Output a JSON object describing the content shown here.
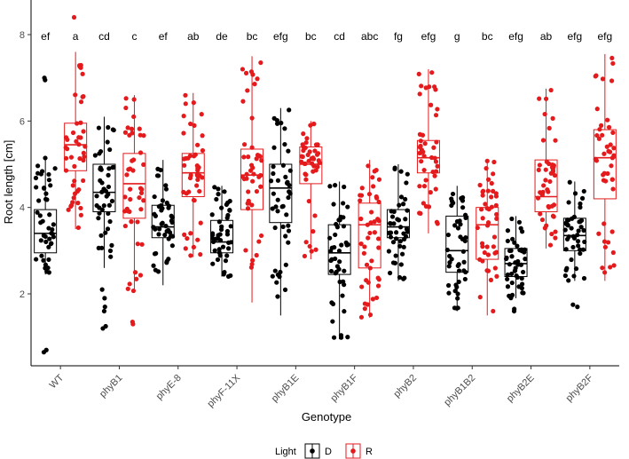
{
  "chart_data": {
    "type": "boxplot",
    "xlabel": "Genotype",
    "ylabel": "Root length [cm]",
    "ylim": [
      0.4,
      8.6
    ],
    "yticks": [
      2,
      4,
      6,
      8
    ],
    "categories": [
      "WT",
      "phyB1",
      "phyE-8",
      "phyF-11X",
      "phyB1E",
      "phyB1F",
      "phyB2",
      "phyB1B2",
      "phyB2E",
      "phyB2F"
    ],
    "legend": {
      "title": "Light",
      "position": "bottom",
      "entries": [
        "D",
        "R"
      ]
    },
    "series": [
      {
        "name": "D",
        "color": "#000000",
        "boxes": [
          {
            "min": 2.45,
            "q1": 2.95,
            "median": 3.4,
            "q3": 3.95,
            "max": 5.15,
            "outliers": [
              0.65,
              0.7,
              6.95,
              7.0
            ]
          },
          {
            "min": 2.6,
            "q1": 3.9,
            "median": 4.35,
            "q3": 5.0,
            "max": 6.1,
            "outliers": [
              1.2,
              1.25,
              1.6,
              1.7,
              1.9,
              2.1
            ]
          },
          {
            "min": 2.2,
            "q1": 3.3,
            "median": 3.55,
            "q3": 4.05,
            "max": 5.1,
            "outliers": []
          },
          {
            "min": 2.4,
            "q1": 2.95,
            "median": 3.2,
            "q3": 3.7,
            "max": 4.5,
            "outliers": []
          },
          {
            "min": 1.5,
            "q1": 3.65,
            "median": 4.45,
            "q3": 5.0,
            "max": 6.3,
            "outliers": []
          },
          {
            "min": 0.95,
            "q1": 2.45,
            "median": 2.95,
            "q3": 3.6,
            "max": 4.6,
            "outliers": []
          },
          {
            "min": 2.3,
            "q1": 3.3,
            "median": 3.55,
            "q3": 3.95,
            "max": 5.0,
            "outliers": []
          },
          {
            "min": 1.6,
            "q1": 2.5,
            "median": 3.0,
            "q3": 3.8,
            "max": 4.5,
            "outliers": []
          },
          {
            "min": 1.9,
            "q1": 2.4,
            "median": 2.7,
            "q3": 3.05,
            "max": 3.8,
            "outliers": [
              1.6,
              1.65
            ]
          },
          {
            "min": 2.3,
            "q1": 3.0,
            "median": 3.35,
            "q3": 3.75,
            "max": 4.6,
            "outliers": [
              1.7,
              1.75
            ]
          }
        ]
      },
      {
        "name": "R",
        "color": "#e41a1c",
        "boxes": [
          {
            "min": 3.5,
            "q1": 4.85,
            "median": 5.45,
            "q3": 5.95,
            "max": 7.6,
            "outliers": [
              8.4
            ]
          },
          {
            "min": 2.05,
            "q1": 3.75,
            "median": 4.55,
            "q3": 5.25,
            "max": 6.6,
            "outliers": [
              1.3,
              1.35
            ]
          },
          {
            "min": 2.85,
            "q1": 4.25,
            "median": 4.8,
            "q3": 5.25,
            "max": 6.65,
            "outliers": []
          },
          {
            "min": 1.8,
            "q1": 3.95,
            "median": 4.75,
            "q3": 5.35,
            "max": 7.5,
            "outliers": []
          },
          {
            "min": 2.8,
            "q1": 4.55,
            "median": 5.0,
            "q3": 5.4,
            "max": 6.0,
            "outliers": []
          },
          {
            "min": 1.45,
            "q1": 2.6,
            "median": 3.6,
            "q3": 4.1,
            "max": 5.1,
            "outliers": []
          },
          {
            "min": 3.4,
            "q1": 4.8,
            "median": 5.15,
            "q3": 5.55,
            "max": 7.2,
            "outliers": []
          },
          {
            "min": 1.5,
            "q1": 2.8,
            "median": 3.6,
            "q3": 4.0,
            "max": 5.1,
            "outliers": []
          },
          {
            "min": 3.05,
            "q1": 3.9,
            "median": 4.25,
            "q3": 5.1,
            "max": 6.75,
            "outliers": []
          },
          {
            "min": 2.3,
            "q1": 4.2,
            "median": 5.15,
            "q3": 5.8,
            "max": 7.55,
            "outliers": []
          }
        ]
      }
    ],
    "significance_labels": [
      [
        "ef",
        "a"
      ],
      [
        "cd",
        "c"
      ],
      [
        "ef",
        "ab"
      ],
      [
        "de",
        "bc"
      ],
      [
        "efg",
        "bc"
      ],
      [
        "cd",
        "abc"
      ],
      [
        "fg",
        "efg"
      ],
      [
        "g",
        "bc"
      ],
      [
        "efg",
        "ab"
      ],
      [
        "efg",
        "efg"
      ]
    ]
  }
}
